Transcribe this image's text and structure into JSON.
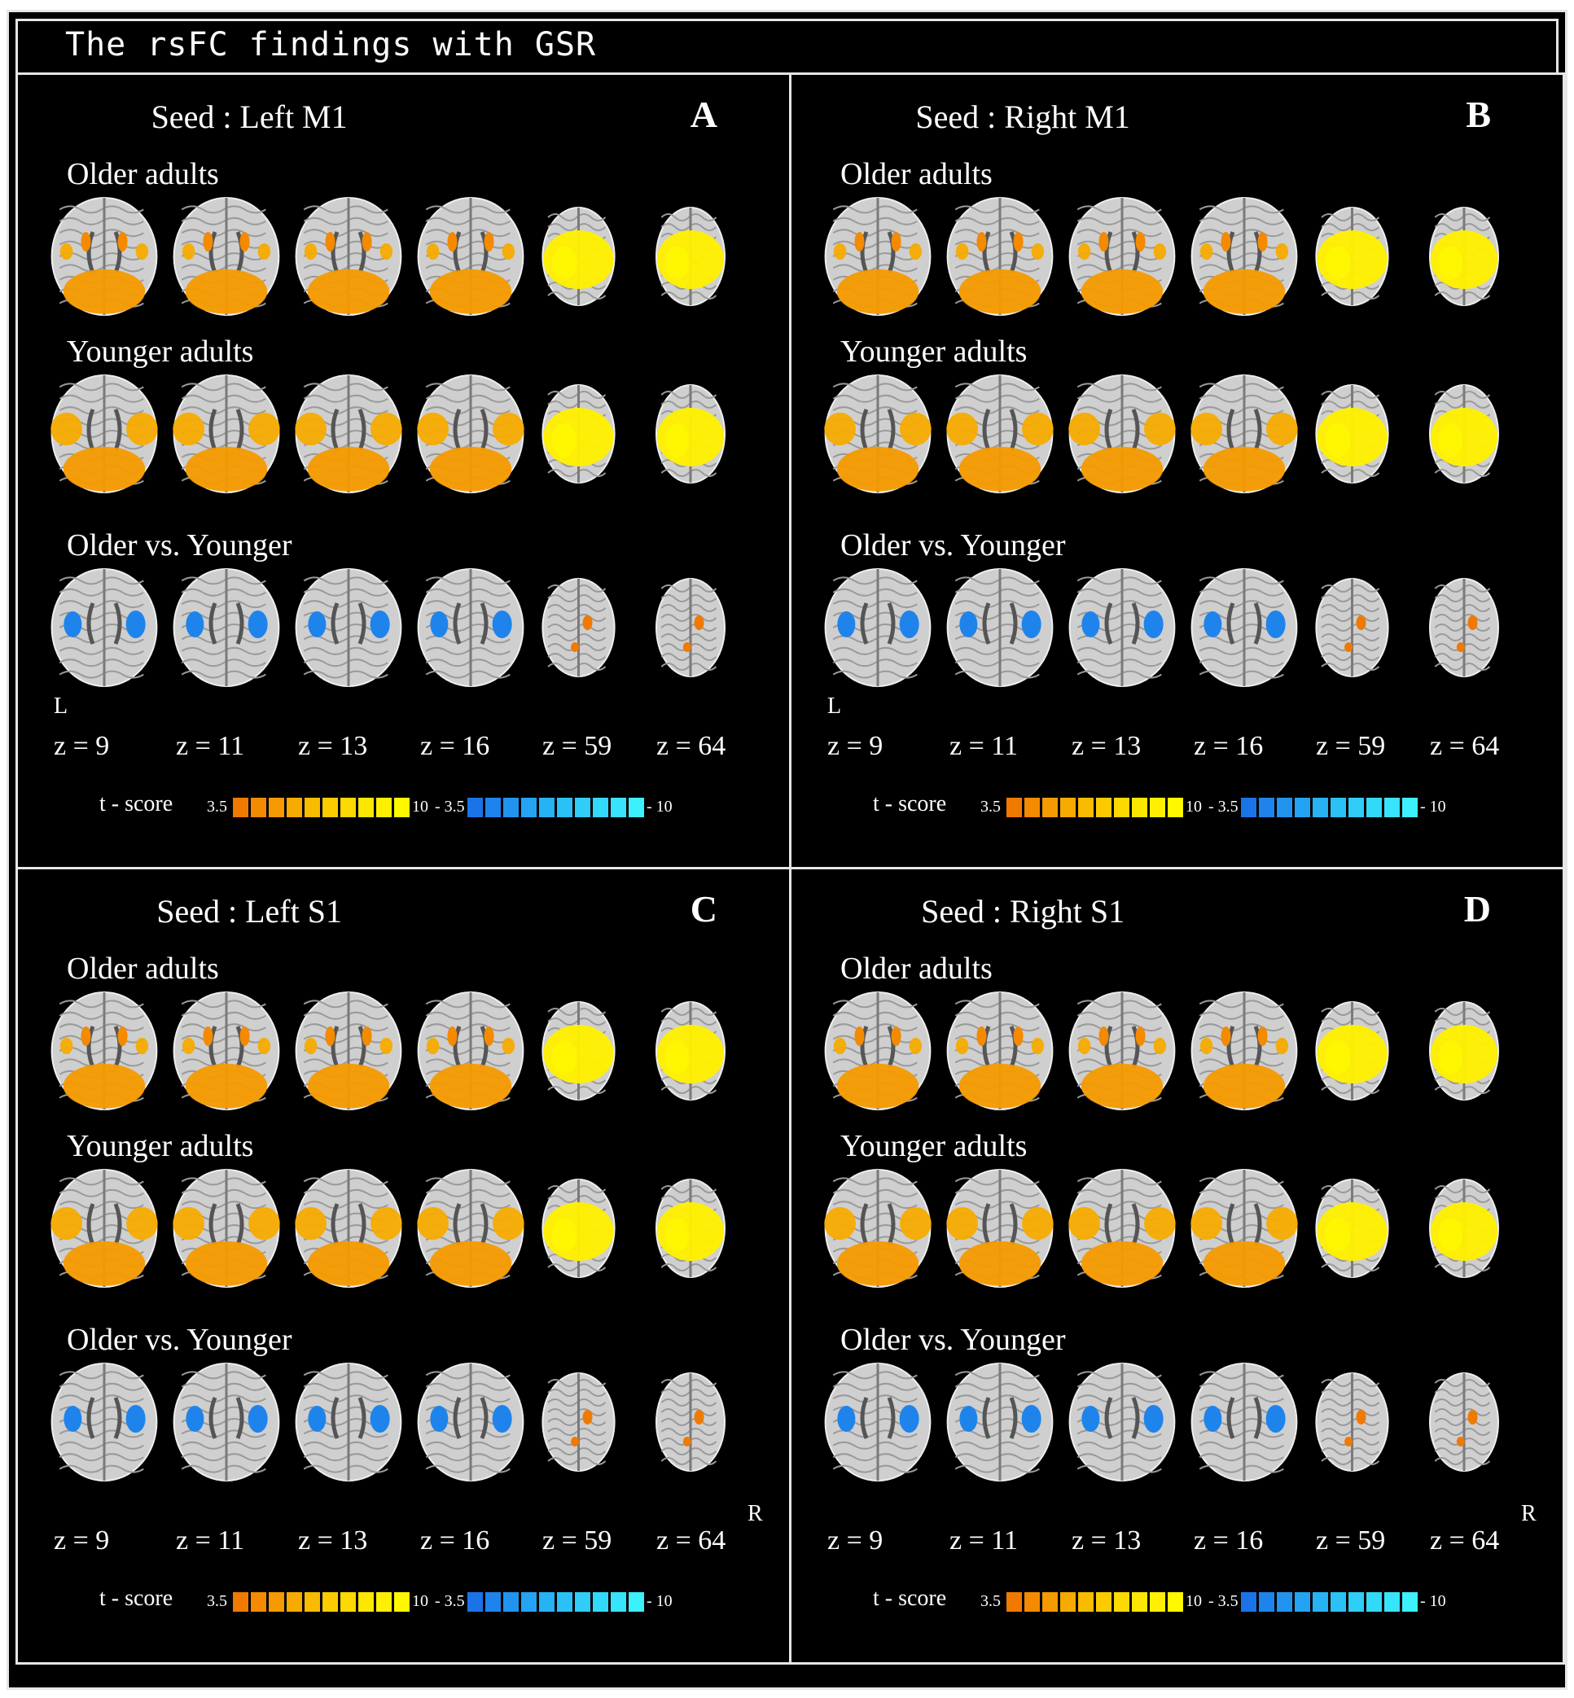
{
  "header": {
    "title": "The rsFC findings with GSR"
  },
  "colors": {
    "background": "#000000",
    "frame": "#e6e6e6",
    "warm_scale": [
      "#f07a00",
      "#f38a00",
      "#f59a00",
      "#f7ab00",
      "#f9bb00",
      "#fbcb00",
      "#fcd900",
      "#fde600",
      "#fef000",
      "#fff800"
    ],
    "cool_scale": [
      "#1a74e8",
      "#1e84ec",
      "#2194ef",
      "#24a3f2",
      "#27b2f4",
      "#2bc0f6",
      "#2fcdf8",
      "#33d9f9",
      "#37e4fb",
      "#3cf0fc"
    ]
  },
  "panels": [
    {
      "seed": "Seed : Left M1",
      "letter": "A",
      "rows": {
        "older": "Older adults",
        "younger": "Younger adults",
        "contrast": "Older vs. Younger"
      },
      "z": [
        "z = 9",
        "z = 11",
        "z = 13",
        "z = 16",
        "z = 59",
        "z = 64"
      ],
      "orientation": {
        "left": "L",
        "right": ""
      },
      "legend": {
        "label": "t - score",
        "warm_min": "3.5",
        "warm_max": "10",
        "cool_min": "- 3.5",
        "cool_max": "- 10"
      }
    },
    {
      "seed": "Seed : Right M1",
      "letter": "B",
      "rows": {
        "older": "Older adults",
        "younger": "Younger adults",
        "contrast": "Older vs. Younger"
      },
      "z": [
        "z = 9",
        "z = 11",
        "z = 13",
        "z = 16",
        "z = 59",
        "z = 64"
      ],
      "orientation": {
        "left": "L",
        "right": ""
      },
      "legend": {
        "label": "t - score",
        "warm_min": "3.5",
        "warm_max": "10",
        "cool_min": "- 3.5",
        "cool_max": "- 10"
      }
    },
    {
      "seed": "Seed : Left S1",
      "letter": "C",
      "rows": {
        "older": "Older adults",
        "younger": "Younger adults",
        "contrast": "Older vs. Younger"
      },
      "z": [
        "z = 9",
        "z = 11",
        "z = 13",
        "z = 16",
        "z = 59",
        "z = 64"
      ],
      "orientation": {
        "left": "",
        "right": "R"
      },
      "legend": {
        "label": "t - score",
        "warm_min": "3.5",
        "warm_max": "10",
        "cool_min": "- 3.5",
        "cool_max": "- 10"
      }
    },
    {
      "seed": "Seed : Right S1",
      "letter": "D",
      "rows": {
        "older": "Older adults",
        "younger": "Younger adults",
        "contrast": "Older vs. Younger"
      },
      "z": [
        "z = 9",
        "z = 11",
        "z = 13",
        "z = 16",
        "z = 59",
        "z = 64"
      ],
      "orientation": {
        "left": "",
        "right": "R"
      },
      "legend": {
        "label": "t - score",
        "warm_min": "3.5",
        "warm_max": "10",
        "cool_min": "- 3.5",
        "cool_max": "- 10"
      }
    }
  ]
}
